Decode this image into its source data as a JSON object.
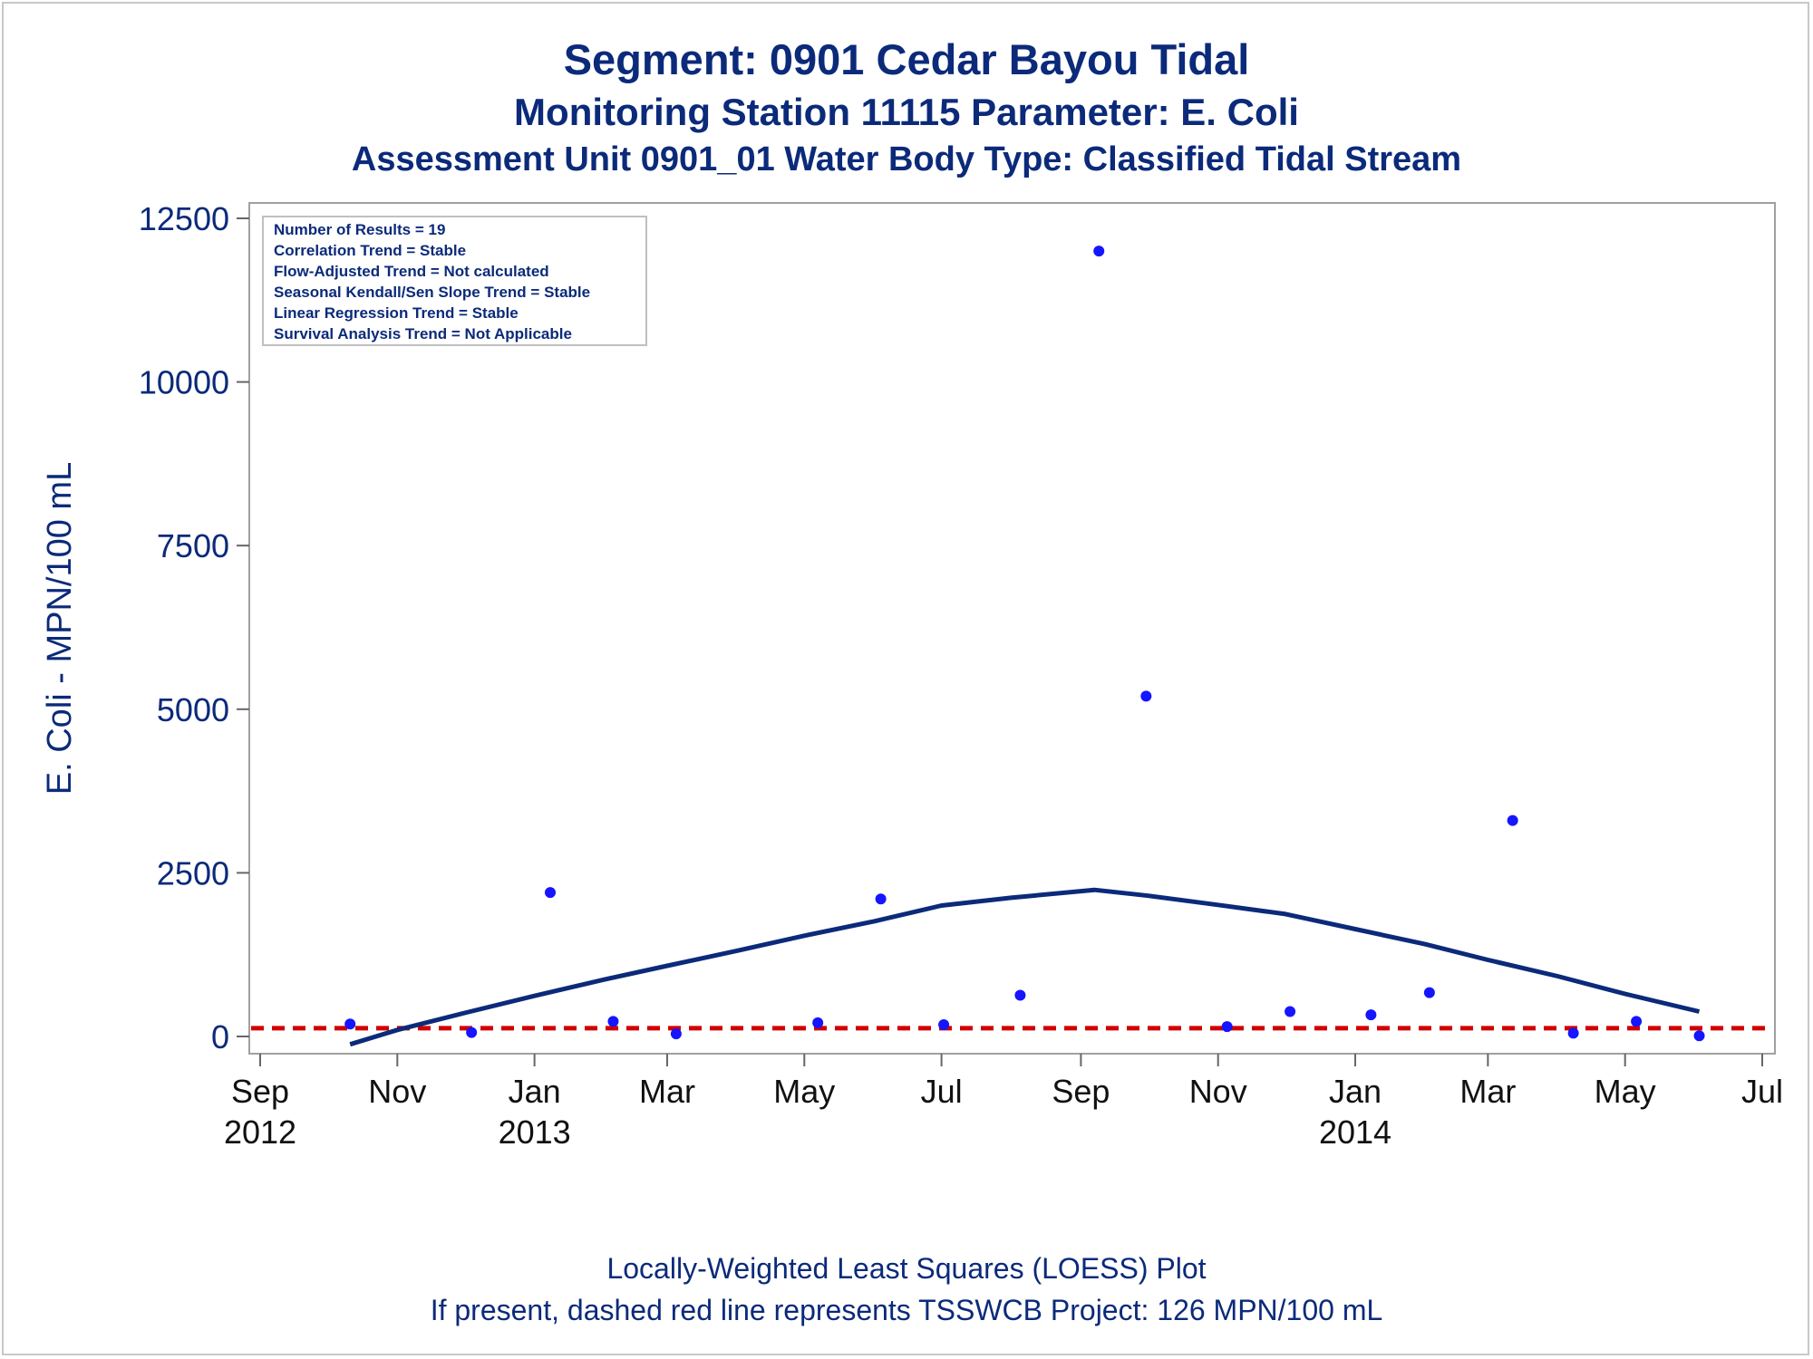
{
  "titles": {
    "line1": "Segment: 0901  Cedar Bayou Tidal",
    "line2": "Monitoring Station 11115 Parameter: E. Coli",
    "line3": "Assessment Unit 0901_01   Water Body Type: Classified Tidal Stream"
  },
  "footer": {
    "line1": "Locally-Weighted Least Squares (LOESS) Plot",
    "line2": "If present, dashed red line represents TSSWCB Project: 126 MPN/100 mL"
  },
  "colors": {
    "text": "#0b2a7a",
    "points": "#1515ff",
    "loess": "#0b2a7a",
    "reference": "#d10000",
    "frame": "#a0a0a0"
  },
  "chart_data": {
    "type": "scatter",
    "ylabel": "E. Coli - MPN/100 mL",
    "xlabel": "",
    "ylim": [
      0,
      12500
    ],
    "xlim": [
      "2012-09-01",
      "2014-07-01"
    ],
    "y_ticks": [
      "0",
      "2500",
      "5000",
      "7500",
      "10000",
      "12500"
    ],
    "x_ticks": [
      {
        "date": "2012-09-01",
        "label": "Sep",
        "year": "2012"
      },
      {
        "date": "2012-11-01",
        "label": "Nov",
        "year": ""
      },
      {
        "date": "2013-01-01",
        "label": "Jan",
        "year": "2013"
      },
      {
        "date": "2013-03-01",
        "label": "Mar",
        "year": ""
      },
      {
        "date": "2013-05-01",
        "label": "May",
        "year": ""
      },
      {
        "date": "2013-07-01",
        "label": "Jul",
        "year": ""
      },
      {
        "date": "2013-09-01",
        "label": "Sep",
        "year": ""
      },
      {
        "date": "2013-11-01",
        "label": "Nov",
        "year": ""
      },
      {
        "date": "2014-01-01",
        "label": "Jan",
        "year": "2014"
      },
      {
        "date": "2014-03-01",
        "label": "Mar",
        "year": ""
      },
      {
        "date": "2014-05-01",
        "label": "May",
        "year": ""
      },
      {
        "date": "2014-07-01",
        "label": "Jul",
        "year": ""
      }
    ],
    "legend_box": {
      "position": "top-left",
      "lines": [
        "Number of Results = 19",
        "Correlation Trend = Stable",
        "Flow-Adjusted Trend = Not calculated",
        "Seasonal Kendall/Sen Slope Trend = Stable",
        "Linear Regression Trend = Stable",
        "Survival Analysis Trend = Not Applicable"
      ]
    },
    "reference_line": {
      "y": 126,
      "style": "dashed"
    },
    "points": [
      {
        "x": "2012-10-11",
        "y": 190
      },
      {
        "x": "2012-12-04",
        "y": 60
      },
      {
        "x": "2013-01-08",
        "y": 2200
      },
      {
        "x": "2013-02-05",
        "y": 230
      },
      {
        "x": "2013-03-05",
        "y": 40
      },
      {
        "x": "2013-05-07",
        "y": 210
      },
      {
        "x": "2013-06-04",
        "y": 2100
      },
      {
        "x": "2013-07-02",
        "y": 180
      },
      {
        "x": "2013-08-05",
        "y": 630
      },
      {
        "x": "2013-09-09",
        "y": 12000
      },
      {
        "x": "2013-09-30",
        "y": 5200
      },
      {
        "x": "2013-11-05",
        "y": 150
      },
      {
        "x": "2013-12-03",
        "y": 380
      },
      {
        "x": "2014-01-08",
        "y": 330
      },
      {
        "x": "2014-02-03",
        "y": 670
      },
      {
        "x": "2014-03-12",
        "y": 3300
      },
      {
        "x": "2014-04-08",
        "y": 50
      },
      {
        "x": "2014-05-06",
        "y": 230
      },
      {
        "x": "2014-06-03",
        "y": 10
      }
    ],
    "loess": [
      {
        "x": "2012-10-11",
        "y": -120
      },
      {
        "x": "2012-11-01",
        "y": 100
      },
      {
        "x": "2012-12-01",
        "y": 360
      },
      {
        "x": "2013-01-01",
        "y": 620
      },
      {
        "x": "2013-02-01",
        "y": 870
      },
      {
        "x": "2013-03-01",
        "y": 1080
      },
      {
        "x": "2013-04-01",
        "y": 1310
      },
      {
        "x": "2013-05-01",
        "y": 1540
      },
      {
        "x": "2013-06-01",
        "y": 1760
      },
      {
        "x": "2013-07-01",
        "y": 2000
      },
      {
        "x": "2013-08-01",
        "y": 2120
      },
      {
        "x": "2013-09-07",
        "y": 2240
      },
      {
        "x": "2013-10-01",
        "y": 2150
      },
      {
        "x": "2013-11-01",
        "y": 2010
      },
      {
        "x": "2013-12-01",
        "y": 1870
      },
      {
        "x": "2014-01-01",
        "y": 1640
      },
      {
        "x": "2014-02-01",
        "y": 1410
      },
      {
        "x": "2014-03-01",
        "y": 1170
      },
      {
        "x": "2014-04-01",
        "y": 920
      },
      {
        "x": "2014-05-01",
        "y": 650
      },
      {
        "x": "2014-06-03",
        "y": 380
      }
    ]
  }
}
